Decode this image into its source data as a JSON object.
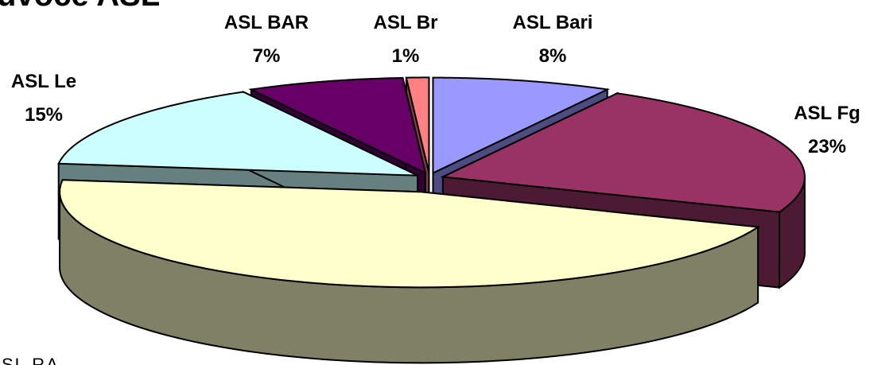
{
  "chart_data": {
    "type": "pie",
    "title": "uvoce ASL",
    "footer_text": "SL RA",
    "legend": "none",
    "slices": [
      {
        "label": "ASL Bari",
        "value": 8,
        "value_label": "8%",
        "top_color": "#9999FF",
        "side_color": "#4C4C80"
      },
      {
        "label": "ASL Fg",
        "value": 23,
        "value_label": "23%",
        "top_color": "#993366",
        "side_color": "#4C1A33"
      },
      {
        "label": "",
        "value": 46,
        "value_label": "",
        "top_color": "#FFFFCC",
        "side_color": "#808066"
      },
      {
        "label": "ASL Le",
        "value": 15,
        "value_label": "15%",
        "top_color": "#CCFFFF",
        "side_color": "#668080"
      },
      {
        "label": "ASL BAR",
        "value": 7,
        "value_label": "7%",
        "top_color": "#660066",
        "side_color": "#330033"
      },
      {
        "label": "ASL Br",
        "value": 1,
        "value_label": "1%",
        "top_color": "#FF8080",
        "side_color": "#804040"
      }
    ]
  }
}
